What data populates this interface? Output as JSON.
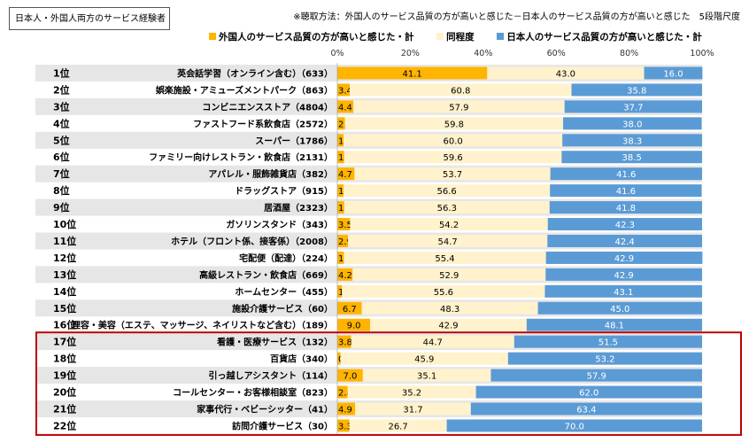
{
  "header": {
    "box_label": "日本人・外国人両方のサービス経験者",
    "method_note": "※聴取方法：外国人のサービス品質の方が高いと感じた－日本人のサービス品質の方が高いと感じた　5段階尺度"
  },
  "colors": {
    "foreign": "#FFB400",
    "same": "#FFF2CC",
    "japanese": "#5B9BD5",
    "row_band": "#E7E6E6",
    "highlight_border": "#C00000"
  },
  "chart_data": {
    "type": "bar",
    "orientation": "horizontal",
    "stacked": true,
    "xlim": [
      0,
      100
    ],
    "xticks": [
      "0%",
      "20%",
      "40%",
      "60%",
      "80%",
      "100%"
    ],
    "legend": [
      "外国人のサービス品質の方が高いと感じた・計",
      "同程度",
      "日本人のサービス品質の方が高いと感じた・計"
    ],
    "ranks": [
      "1位",
      "2位",
      "3位",
      "4位",
      "5位",
      "6位",
      "7位",
      "8位",
      "9位",
      "10位",
      "11位",
      "12位",
      "13位",
      "14位",
      "15位",
      "16位",
      "17位",
      "18位",
      "19位",
      "20位",
      "21位",
      "22位"
    ],
    "categories": [
      "英会話学習（オンライン含む）（633）",
      "娯楽施設・アミューズメントパーク（863）",
      "コンビニエンスストア（4804）",
      "ファストフード系飲食店（2572）",
      "スーパー（1786）",
      "ファミリー向けレストラン・飲食店（2131）",
      "アパレル・服飾雑貨店（382）",
      "ドラッグストア（915）",
      "居酒屋（2323）",
      "ガソリンスタンド（343）",
      "ホテル（フロント係、接客係）（2008）",
      "宅配便（配達）（224）",
      "高級レストラン・飲食店（669）",
      "ホームセンター（455）",
      "施設介護サービス（60）",
      "理容・美容（エステ、マッサージ、ネイリストなど含む）（189）",
      "看護・医療サービス（132）",
      "百貨店（340）",
      "引っ越しアシスタント（114）",
      "コールセンター・お客様相談室（823）",
      "家事代行・ベビーシッター（41）",
      "訪問介護サービス（30）"
    ],
    "series": [
      {
        "name": "外国人のサービス品質の方が高いと感じた・計",
        "values": [
          41.1,
          3.4,
          4.4,
          2.1,
          1.7,
          1.9,
          4.7,
          1.7,
          1.9,
          3.5,
          2.9,
          1.8,
          4.2,
          1.3,
          6.7,
          9.0,
          3.8,
          0.9,
          7.0,
          2.8,
          4.9,
          3.3
        ]
      },
      {
        "name": "同程度",
        "values": [
          43.0,
          60.8,
          57.9,
          59.8,
          60.0,
          59.6,
          53.7,
          56.6,
          56.3,
          54.2,
          54.7,
          55.4,
          52.9,
          55.6,
          48.3,
          42.9,
          44.7,
          45.9,
          35.1,
          35.2,
          31.7,
          26.7
        ]
      },
      {
        "name": "日本人のサービス品質の方が高いと感じた・計",
        "values": [
          16.0,
          35.8,
          37.7,
          38.0,
          38.3,
          38.5,
          41.6,
          41.6,
          41.8,
          42.3,
          42.4,
          42.9,
          42.9,
          43.1,
          45.0,
          48.1,
          51.5,
          53.2,
          57.9,
          62.0,
          63.4,
          70.0
        ]
      }
    ],
    "highlight_ranks": [
      17,
      22
    ]
  }
}
